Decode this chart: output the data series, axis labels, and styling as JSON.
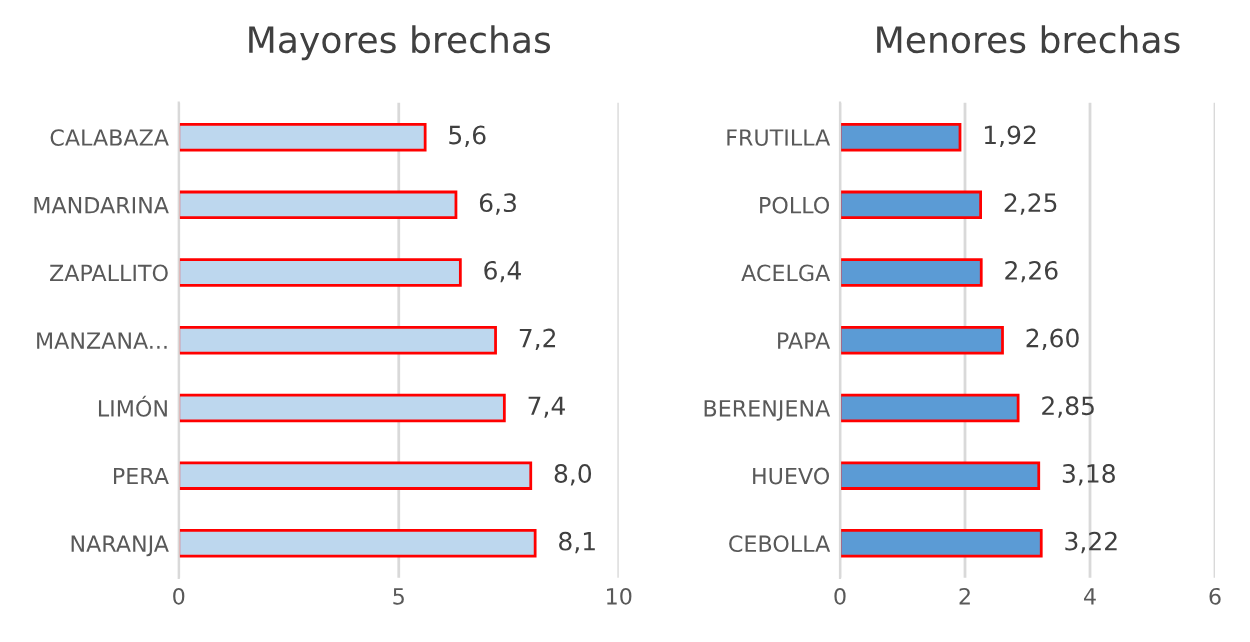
{
  "chart_data": [
    {
      "type": "bar",
      "orientation": "horizontal",
      "title": "Mayores brechas",
      "categories": [
        "CALABAZA",
        "MANDARINA",
        "ZAPALLITO",
        "MANZANA...",
        "LIMÓN",
        "PERA",
        "NARANJA"
      ],
      "values": [
        5.6,
        6.3,
        6.4,
        7.2,
        7.4,
        8.0,
        8.1
      ],
      "value_labels": [
        "5,6",
        "6,3",
        "6,4",
        "7,2",
        "7,4",
        "8,0",
        "8,1"
      ],
      "color": "#bdd7ee",
      "xlim": [
        0,
        10
      ],
      "xticks": [
        0,
        5,
        10
      ],
      "grid": "x",
      "legend": false
    },
    {
      "type": "bar",
      "orientation": "horizontal",
      "title": "Menores brechas",
      "categories": [
        "FRUTILLA",
        "POLLO",
        "ACELGA",
        "PAPA",
        "BERENJENA",
        "HUEVO",
        "CEBOLLA"
      ],
      "values": [
        1.92,
        2.25,
        2.26,
        2.6,
        2.85,
        3.18,
        3.22
      ],
      "value_labels": [
        "1,92",
        "2,25",
        "2,26",
        "2,60",
        "2,85",
        "3,18",
        "3,22"
      ],
      "color": "#5b9bd5",
      "xlim": [
        0,
        6
      ],
      "xticks": [
        0,
        2,
        4,
        6
      ],
      "grid": "x",
      "legend": false
    }
  ]
}
